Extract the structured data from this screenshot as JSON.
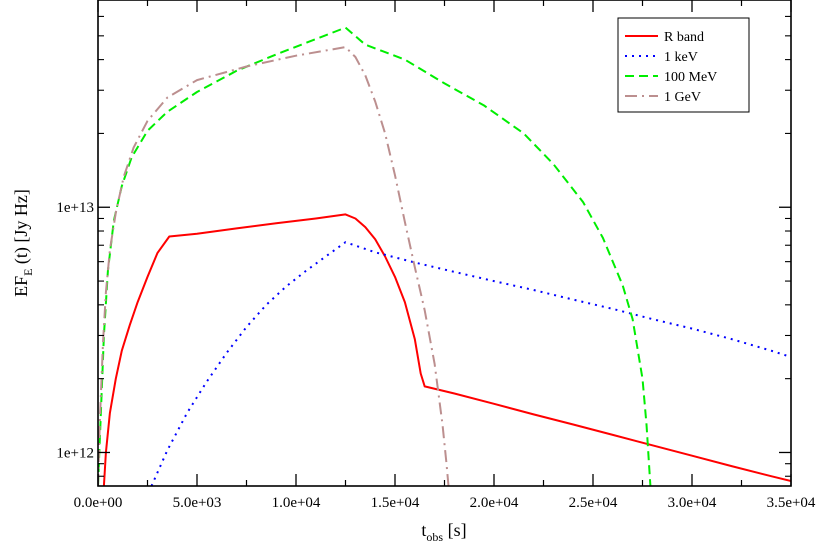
{
  "chart_data": {
    "type": "line",
    "xlabel": "t",
    "xlabel_sub": "obs",
    "xlabel_unit": " [s]",
    "ylabel_pre": "EF",
    "ylabel_sub": "E",
    "ylabel_post": " (t) [Jy Hz]",
    "xlim": [
      0,
      35000
    ],
    "ylim": [
      730000000000,
      70000000000000
    ],
    "yscale": "log",
    "legend_position": "top-right",
    "x_ticks": [
      0,
      5000,
      10000,
      15000,
      20000,
      25000,
      30000,
      35000
    ],
    "x_tick_labels": [
      "0.0e+00",
      "5.0e+03",
      "1.0e+04",
      "1.5e+04",
      "2.0e+04",
      "2.5e+04",
      "3.0e+04",
      "3.5e+04"
    ],
    "y_ticks": [
      1000000000000,
      10000000000000
    ],
    "y_tick_labels": [
      "1e+12",
      "1e+13"
    ],
    "series": [
      {
        "name": "R band",
        "color": "#ff0000",
        "dash": "solid",
        "points": [
          [
            300,
            730000000000.0
          ],
          [
            400,
            1000000000000.0
          ],
          [
            600,
            1450000000000.0
          ],
          [
            900,
            2000000000000.0
          ],
          [
            1200,
            2600000000000.0
          ],
          [
            1600,
            3300000000000.0
          ],
          [
            2000,
            4100000000000.0
          ],
          [
            2500,
            5200000000000.0
          ],
          [
            3000,
            6500000000000.0
          ],
          [
            3600,
            7600000000000.0
          ],
          [
            5000,
            7800000000000.0
          ],
          [
            7000,
            8200000000000.0
          ],
          [
            9000,
            8600000000000.0
          ],
          [
            11000,
            9000000000000.0
          ],
          [
            12500,
            9350000000000.0
          ],
          [
            13000,
            9000000000000.0
          ],
          [
            13500,
            8300000000000.0
          ],
          [
            14000,
            7400000000000.0
          ],
          [
            14500,
            6300000000000.0
          ],
          [
            15000,
            5200000000000.0
          ],
          [
            15500,
            4100000000000.0
          ],
          [
            16000,
            2900000000000.0
          ],
          [
            16300,
            2100000000000.0
          ],
          [
            16500,
            1860000000000.0
          ],
          [
            18000,
            1740000000000.0
          ],
          [
            20000,
            1580000000000.0
          ],
          [
            22000,
            1430000000000.0
          ],
          [
            24000,
            1300000000000.0
          ],
          [
            26000,
            1180000000000.0
          ],
          [
            28000,
            1070000000000.0
          ],
          [
            30000,
            970000000000.0
          ],
          [
            32000,
            880000000000.0
          ],
          [
            34000,
            800000000000.0
          ],
          [
            35000,
            765000000000.0
          ]
        ]
      },
      {
        "name": "1 keV",
        "color": "#0000ff",
        "dash": "dotted",
        "points": [
          [
            2700,
            730000000000.0
          ],
          [
            3500,
            1020000000000.0
          ],
          [
            4500,
            1450000000000.0
          ],
          [
            5500,
            1950000000000.0
          ],
          [
            6500,
            2550000000000.0
          ],
          [
            7500,
            3250000000000.0
          ],
          [
            8500,
            4000000000000.0
          ],
          [
            9500,
            4750000000000.0
          ],
          [
            10500,
            5500000000000.0
          ],
          [
            11500,
            6300000000000.0
          ],
          [
            12500,
            7200000000000.0
          ],
          [
            14000,
            6550000000000.0
          ],
          [
            16000,
            5950000000000.0
          ],
          [
            18000,
            5450000000000.0
          ],
          [
            20000,
            5000000000000.0
          ],
          [
            22000,
            4600000000000.0
          ],
          [
            24000,
            4200000000000.0
          ],
          [
            26000,
            3850000000000.0
          ],
          [
            28000,
            3500000000000.0
          ],
          [
            30000,
            3200000000000.0
          ],
          [
            32000,
            2900000000000.0
          ],
          [
            34000,
            2600000000000.0
          ],
          [
            35000,
            2450000000000.0
          ]
        ]
      },
      {
        "name": "100 MeV",
        "color": "#00ee00",
        "dash": "dashed",
        "points": [
          [
            0,
            730000000000.0
          ],
          [
            150,
            1500000000000.0
          ],
          [
            300,
            3000000000000.0
          ],
          [
            500,
            5500000000000.0
          ],
          [
            800,
            8800000000000.0
          ],
          [
            1200,
            12200000000000.0
          ],
          [
            1700,
            16000000000000.0
          ],
          [
            2500,
            20500000000000.0
          ],
          [
            3500,
            24500000000000.0
          ],
          [
            5000,
            29500000000000.0
          ],
          [
            7000,
            36000000000000.0
          ],
          [
            9000,
            42000000000000.0
          ],
          [
            11000,
            48500000000000.0
          ],
          [
            12500,
            54000000000000.0
          ],
          [
            13500,
            46000000000000.0
          ],
          [
            15500,
            40000000000000.0
          ],
          [
            17500,
            32000000000000.0
          ],
          [
            19500,
            26000000000000.0
          ],
          [
            21500,
            20000000000000.0
          ],
          [
            23000,
            15000000000000.0
          ],
          [
            24500,
            10500000000000.0
          ],
          [
            25500,
            7500000000000.0
          ],
          [
            26500,
            4800000000000.0
          ],
          [
            27000,
            3500000000000.0
          ],
          [
            27500,
            2000000000000.0
          ],
          [
            27700,
            1300000000000.0
          ],
          [
            27900,
            730000000000.0
          ]
        ]
      },
      {
        "name": "1 GeV",
        "color": "#bc8f8f",
        "dash": "dashdot",
        "points": [
          [
            0,
            730000000000.0
          ],
          [
            100,
            1400000000000.0
          ],
          [
            250,
            2800000000000.0
          ],
          [
            400,
            4500000000000.0
          ],
          [
            600,
            6700000000000.0
          ],
          [
            900,
            9500000000000.0
          ],
          [
            1300,
            13300000000000.0
          ],
          [
            1800,
            17500000000000.0
          ],
          [
            2500,
            22500000000000.0
          ],
          [
            3500,
            28000000000000.0
          ],
          [
            5000,
            33000000000000.0
          ],
          [
            7500,
            37500000000000.0
          ],
          [
            10000,
            41500000000000.0
          ],
          [
            12500,
            45000000000000.0
          ],
          [
            13000,
            41000000000000.0
          ],
          [
            13500,
            34500000000000.0
          ],
          [
            14000,
            27000000000000.0
          ],
          [
            14500,
            20000000000000.0
          ],
          [
            15000,
            13500000000000.0
          ],
          [
            15500,
            8700000000000.0
          ],
          [
            16000,
            5700000000000.0
          ],
          [
            16500,
            3800000000000.0
          ],
          [
            17000,
            2300000000000.0
          ],
          [
            17400,
            1300000000000.0
          ],
          [
            17600,
            900000000000.0
          ],
          [
            17700,
            730000000000.0
          ]
        ]
      }
    ]
  }
}
